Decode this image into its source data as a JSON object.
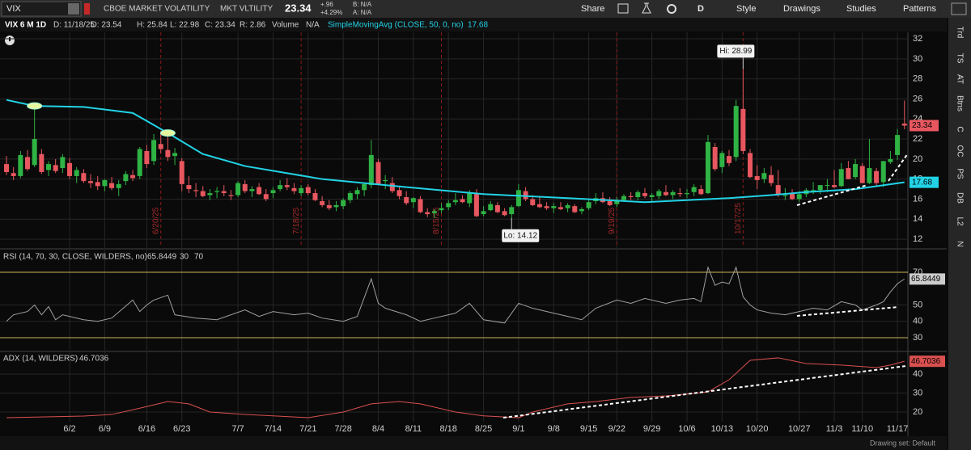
{
  "toolbar": {
    "symbol": "VIX",
    "description": "CBOE MARKET VOLATILITY",
    "short_name": "MKT VLTILITY",
    "last": 23.34,
    "change": "+.96",
    "change_pct": "+4.29%",
    "bid": "B: N/A",
    "ask": "A: N/A",
    "share": "Share",
    "period": "D",
    "style": "Style",
    "drawings": "Drawings",
    "studies": "Studies",
    "patterns": "Patterns"
  },
  "info": {
    "title": "VIX 6 M 1D",
    "date": "D: 11/18/25",
    "open": "O: 23.54",
    "high": "H: 25.84",
    "low": "L: 22.98",
    "close": "C: 23.34",
    "range": "R: 2.86",
    "volume": "Volume",
    "volume_value": "N/A",
    "sma_name": "SimpleMovingAvg (CLOSE, 50, 0, no)",
    "sma_value": 17.68
  },
  "xticks": [
    {
      "value": 9,
      "label": "6/2"
    },
    {
      "value": 14,
      "label": "6/9"
    },
    {
      "value": 20,
      "label": "6/16"
    },
    {
      "value": 25,
      "label": "6/23"
    },
    {
      "value": 33,
      "label": "7/7"
    },
    {
      "value": 38,
      "label": "7/14"
    },
    {
      "value": 43,
      "label": "7/21"
    },
    {
      "value": 48,
      "label": "7/28"
    },
    {
      "value": 53,
      "label": "8/4"
    },
    {
      "value": 58,
      "label": "8/11"
    },
    {
      "value": 63,
      "label": "8/18"
    },
    {
      "value": 68,
      "label": "8/25"
    },
    {
      "value": 73,
      "label": "9/1"
    },
    {
      "value": 78,
      "label": "9/8"
    },
    {
      "value": 83,
      "label": "9/15"
    },
    {
      "value": 87,
      "label": "9/22"
    },
    {
      "value": 92,
      "label": "9/29"
    },
    {
      "value": 97,
      "label": "10/6"
    },
    {
      "value": 102,
      "label": "10/13"
    },
    {
      "value": 107,
      "label": "10/20"
    },
    {
      "value": 113,
      "label": "10/27"
    },
    {
      "value": 118,
      "label": "11/3"
    },
    {
      "value": 122,
      "label": "11/10"
    },
    {
      "value": 127,
      "label": "11/17"
    }
  ],
  "events": [
    {
      "x": 22,
      "label": "6/20/25"
    },
    {
      "x": 42,
      "label": "7/18/25"
    },
    {
      "x": 62,
      "label": "8/15/25"
    },
    {
      "x": 87,
      "label": "9/19/25"
    },
    {
      "x": 105,
      "label": "10/17/25"
    }
  ],
  "price": {
    "ylim": [
      11.2,
      32.65
    ],
    "yticks": [
      12,
      14,
      16,
      18,
      20,
      22,
      24,
      26,
      28,
      30,
      32
    ],
    "up_color": "#2fb344",
    "down_color": "#e8575f",
    "candles": [
      [
        19.5,
        20.3,
        18.4,
        18.7
      ],
      [
        18.6,
        19.2,
        17.9,
        18.3
      ],
      [
        18.3,
        20.8,
        18.1,
        20.4
      ],
      [
        20.2,
        20.9,
        18.8,
        19.0
      ],
      [
        19.4,
        25.3,
        19.2,
        22.0
      ],
      [
        20.5,
        21.0,
        18.5,
        18.7
      ],
      [
        18.9,
        19.8,
        18.3,
        19.5
      ],
      [
        19.4,
        20.0,
        18.6,
        18.8
      ],
      [
        19.1,
        20.5,
        18.6,
        20.2
      ],
      [
        19.6,
        20.1,
        18.0,
        18.3
      ],
      [
        18.3,
        19.2,
        17.6,
        18.9
      ],
      [
        18.6,
        19.0,
        17.6,
        17.8
      ],
      [
        17.8,
        18.5,
        17.1,
        17.6
      ],
      [
        17.7,
        18.3,
        16.9,
        17.3
      ],
      [
        17.3,
        18.0,
        16.8,
        17.9
      ],
      [
        17.6,
        18.2,
        16.9,
        17.1
      ],
      [
        17.1,
        17.9,
        16.3,
        17.5
      ],
      [
        17.8,
        18.8,
        17.4,
        18.5
      ],
      [
        18.4,
        18.9,
        17.8,
        18.1
      ],
      [
        18.3,
        21.2,
        18.0,
        21.0
      ],
      [
        20.8,
        21.4,
        19.1,
        19.5
      ],
      [
        19.8,
        22.5,
        19.4,
        21.9
      ],
      [
        21.5,
        22.6,
        20.6,
        21.0
      ],
      [
        20.9,
        22.9,
        19.8,
        20.2
      ],
      [
        20.3,
        21.1,
        19.4,
        20.6
      ],
      [
        19.8,
        20.1,
        16.8,
        17.5
      ],
      [
        17.4,
        18.3,
        16.6,
        17.0
      ],
      [
        16.9,
        17.6,
        16.2,
        16.8
      ],
      [
        16.8,
        17.3,
        16.2,
        16.3
      ],
      [
        16.4,
        17.0,
        15.9,
        16.6
      ],
      [
        16.7,
        17.2,
        16.1,
        16.8
      ],
      [
        16.8,
        17.4,
        16.3,
        16.6
      ],
      [
        16.4,
        16.9,
        15.9,
        16.3
      ],
      [
        16.4,
        17.8,
        16.2,
        17.6
      ],
      [
        17.5,
        17.9,
        16.6,
        16.8
      ],
      [
        16.8,
        17.3,
        16.2,
        17.0
      ],
      [
        17.2,
        17.6,
        16.4,
        16.5
      ],
      [
        16.5,
        17.0,
        15.8,
        16.0
      ],
      [
        16.6,
        17.2,
        16.1,
        16.9
      ],
      [
        17.0,
        17.9,
        16.8,
        17.4
      ],
      [
        17.4,
        18.1,
        16.9,
        17.2
      ],
      [
        17.1,
        17.6,
        16.5,
        16.8
      ],
      [
        16.6,
        17.4,
        16.3,
        17.1
      ],
      [
        17.2,
        17.5,
        16.4,
        16.6
      ],
      [
        16.6,
        17.0,
        15.8,
        15.9
      ],
      [
        15.8,
        16.3,
        15.2,
        15.4
      ],
      [
        15.4,
        15.9,
        14.9,
        15.1
      ],
      [
        15.2,
        15.8,
        14.8,
        15.4
      ],
      [
        15.3,
        16.1,
        15.0,
        15.9
      ],
      [
        15.9,
        16.8,
        15.6,
        16.6
      ],
      [
        16.5,
        17.2,
        16.0,
        16.9
      ],
      [
        16.9,
        17.6,
        16.3,
        17.5
      ],
      [
        17.4,
        21.9,
        17.1,
        20.4
      ],
      [
        19.7,
        20.0,
        17.4,
        17.5
      ],
      [
        17.8,
        18.4,
        17.0,
        17.9
      ],
      [
        17.6,
        18.2,
        16.6,
        16.8
      ],
      [
        16.9,
        17.3,
        16.0,
        16.3
      ],
      [
        16.2,
        16.8,
        15.4,
        15.6
      ],
      [
        15.7,
        16.2,
        15.1,
        16.1
      ],
      [
        16.0,
        16.3,
        14.6,
        14.7
      ],
      [
        14.7,
        15.1,
        14.2,
        14.5
      ],
      [
        14.6,
        15.0,
        14.1,
        14.8
      ],
      [
        14.9,
        15.6,
        14.6,
        15.1
      ],
      [
        15.2,
        15.9,
        14.9,
        15.6
      ],
      [
        15.7,
        16.6,
        15.4,
        15.9
      ],
      [
        16.0,
        16.4,
        15.6,
        15.7
      ],
      [
        15.6,
        16.9,
        15.2,
        16.6
      ],
      [
        16.5,
        17.0,
        14.2,
        14.3
      ],
      [
        14.5,
        15.3,
        14.3,
        14.8
      ],
      [
        14.9,
        15.8,
        14.8,
        15.5
      ],
      [
        15.4,
        15.7,
        14.6,
        14.7
      ],
      [
        14.8,
        15.1,
        14.3,
        14.4
      ],
      [
        14.5,
        15.4,
        14.12,
        15.2
      ],
      [
        15.3,
        17.5,
        15.2,
        16.9
      ],
      [
        16.8,
        17.2,
        15.8,
        16.0
      ],
      [
        16.0,
        16.4,
        15.3,
        15.4
      ],
      [
        15.5,
        16.3,
        15.1,
        15.2
      ],
      [
        15.3,
        15.7,
        14.9,
        15.1
      ],
      [
        15.1,
        15.6,
        14.6,
        15.3
      ],
      [
        15.2,
        15.7,
        14.9,
        15.0
      ],
      [
        15.1,
        15.6,
        14.7,
        15.4
      ],
      [
        15.3,
        15.5,
        14.6,
        14.7
      ],
      [
        14.8,
        15.2,
        14.5,
        15.0
      ],
      [
        15.1,
        15.9,
        14.9,
        15.7
      ],
      [
        15.8,
        16.6,
        15.5,
        16.1
      ],
      [
        16.1,
        16.7,
        15.6,
        15.7
      ],
      [
        15.8,
        16.2,
        15.3,
        15.4
      ],
      [
        15.5,
        16.2,
        15.2,
        15.9
      ],
      [
        15.9,
        16.5,
        15.8,
        16.3
      ],
      [
        16.3,
        16.7,
        15.9,
        16.2
      ],
      [
        16.2,
        16.9,
        15.9,
        16.7
      ],
      [
        16.6,
        17.1,
        16.1,
        16.3
      ],
      [
        16.2,
        16.6,
        15.8,
        16.4
      ],
      [
        16.3,
        17.0,
        16.0,
        16.8
      ],
      [
        16.7,
        17.4,
        16.3,
        16.4
      ],
      [
        16.4,
        16.9,
        16.0,
        16.7
      ],
      [
        16.6,
        17.1,
        16.2,
        16.5
      ],
      [
        16.5,
        17.0,
        16.1,
        16.6
      ],
      [
        16.7,
        17.5,
        16.3,
        17.2
      ],
      [
        17.0,
        17.4,
        16.4,
        16.5
      ],
      [
        16.6,
        22.4,
        16.5,
        21.7
      ],
      [
        21.2,
        21.6,
        18.8,
        19.0
      ],
      [
        19.2,
        20.8,
        18.6,
        20.6
      ],
      [
        20.3,
        20.9,
        19.3,
        19.6
      ],
      [
        20.2,
        25.9,
        19.8,
        25.3
      ],
      [
        25.0,
        28.99,
        20.5,
        20.8
      ],
      [
        20.6,
        21.0,
        18.1,
        18.2
      ],
      [
        18.3,
        19.4,
        17.0,
        17.9
      ],
      [
        18.0,
        19.1,
        17.6,
        18.6
      ],
      [
        18.4,
        19.3,
        17.3,
        17.6
      ],
      [
        17.4,
        18.9,
        16.2,
        16.4
      ],
      [
        16.3,
        17.1,
        15.9,
        16.4
      ],
      [
        16.6,
        17.0,
        15.9,
        16.0
      ],
      [
        16.0,
        16.8,
        15.7,
        16.5
      ],
      [
        16.5,
        17.1,
        16.2,
        16.9
      ],
      [
        16.9,
        17.7,
        16.5,
        16.9
      ],
      [
        16.9,
        17.4,
        16.5,
        17.4
      ],
      [
        17.4,
        18.0,
        16.7,
        17.4
      ],
      [
        17.4,
        18.9,
        17.1,
        17.2
      ],
      [
        17.3,
        19.6,
        17.2,
        19.0
      ],
      [
        19.1,
        19.8,
        18.0,
        18.0
      ],
      [
        18.2,
        20.0,
        18.0,
        19.5
      ],
      [
        19.3,
        19.6,
        17.6,
        17.6
      ],
      [
        17.6,
        22.0,
        17.5,
        19.1
      ],
      [
        18.8,
        19.1,
        17.3,
        17.6
      ],
      [
        17.7,
        19.8,
        17.2,
        19.8
      ],
      [
        19.7,
        20.8,
        19.5,
        20.0
      ],
      [
        20.4,
        23.0,
        19.9,
        22.4
      ],
      [
        23.54,
        25.84,
        22.98,
        23.34
      ]
    ],
    "sma": {
      "color": "#22d3e6",
      "x": [
        0,
        4,
        11,
        18,
        23,
        28,
        34,
        45,
        57,
        68,
        80,
        91,
        103,
        109,
        114,
        121,
        128
      ],
      "values": [
        25.9,
        25.3,
        25.2,
        24.6,
        22.6,
        20.5,
        19.3,
        18.0,
        17.2,
        16.5,
        16.1,
        15.7,
        16.1,
        16.4,
        16.7,
        17.0,
        17.68
      ]
    },
    "tags": [
      {
        "value": 23.34,
        "color": "#e8575f"
      },
      {
        "value": 17.68,
        "color": "#22d3e6"
      }
    ],
    "hi": {
      "x": 105,
      "value": 28.99,
      "label": "Hi: 28.99"
    },
    "lo": {
      "x": 72,
      "value": 14.12,
      "label": "Lo: 14.12"
    }
  },
  "rsi": {
    "name": "RSI (14, 70, 30, CLOSE, WILDERS, no)",
    "value": 65.8449,
    "levels": [
      30,
      70
    ],
    "level_color": "#c9b458",
    "color": "#a0a0a0",
    "ylim": [
      23.1,
      83.3
    ],
    "yticks": [
      30,
      40,
      50,
      70
    ],
    "x": [
      0,
      1,
      3,
      4,
      5,
      6,
      7,
      8,
      11,
      13,
      15,
      18,
      19,
      20,
      21,
      23,
      24,
      27,
      30,
      34,
      36,
      38,
      41,
      43,
      45,
      48,
      50,
      52,
      53,
      54,
      57,
      59,
      61,
      64,
      66,
      68,
      71,
      73,
      75,
      78,
      80,
      82,
      84,
      87,
      89,
      91,
      94,
      96,
      98,
      99,
      100,
      101,
      102,
      103,
      104,
      105,
      106,
      107,
      109,
      111,
      113,
      115,
      117,
      119,
      121,
      122,
      124,
      125,
      126,
      127,
      128
    ],
    "values": [
      40,
      44,
      46,
      50,
      44,
      49,
      41,
      44,
      41,
      40,
      42,
      53,
      46,
      50,
      53,
      56,
      44,
      42,
      41,
      47,
      43,
      46,
      44,
      45,
      42,
      40,
      43,
      66,
      51,
      48,
      44,
      40,
      42,
      45,
      51,
      41,
      39,
      51,
      48,
      45,
      43,
      41,
      48,
      53,
      51,
      54,
      51,
      53,
      54,
      52,
      73,
      62,
      64,
      63,
      73,
      55,
      50,
      47,
      45,
      44,
      46,
      48,
      47,
      52,
      50,
      47,
      50,
      52,
      58,
      63,
      65.8449
    ]
  },
  "adx": {
    "name": "ADX (14, WILDERS)",
    "value": 46.7036,
    "color": "#d9504f",
    "ylim": [
      14.9,
      50.6
    ],
    "yticks": [
      20,
      30,
      40
    ],
    "x": [
      0,
      11,
      15,
      19,
      23,
      26,
      29,
      34,
      38,
      43,
      48,
      52,
      56,
      59,
      64,
      68,
      73,
      75,
      80,
      84,
      89,
      94,
      98,
      100,
      103,
      106,
      110,
      114,
      119,
      124,
      126,
      128
    ],
    "values": [
      17,
      17.9,
      18.7,
      22,
      25.5,
      24.3,
      20,
      18.7,
      18,
      17,
      20,
      24.3,
      25.5,
      24.3,
      20,
      18,
      17,
      20,
      24.3,
      25.5,
      27.7,
      28.5,
      29.8,
      30.6,
      37,
      47.2,
      48.5,
      45.5,
      44.7,
      43.4,
      44.7,
      46.7036
    ]
  },
  "sidebar": [
    "Trd",
    "TS",
    "AT",
    "Btns",
    "C",
    "OC",
    "PS",
    "DB",
    "L2",
    "N"
  ],
  "footer": "Drawing set: Default"
}
